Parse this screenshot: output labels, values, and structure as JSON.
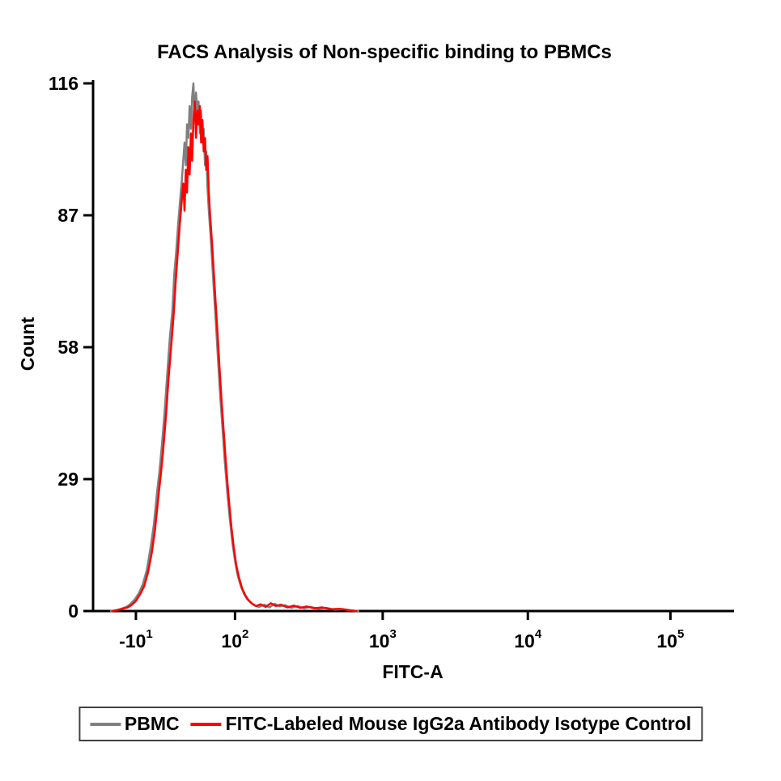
{
  "chart_data": {
    "type": "line",
    "subtype": "flow-cytometry-histogram",
    "title": "FACS Analysis of Non-specific binding to PBMCs",
    "xlabel": "FITC-A",
    "ylabel": "Count",
    "x_scale": "biexponential-log",
    "grid": false,
    "legend_position": "bottom",
    "axis_color": "#000000",
    "ylim": [
      0,
      116
    ],
    "y_ticks": [
      0,
      29,
      58,
      87,
      116
    ],
    "x_ticks": [
      {
        "label": "-10",
        "exponent": "1",
        "position": 0.067
      },
      {
        "label": "10",
        "exponent": "2",
        "position": 0.222
      },
      {
        "label": "10",
        "exponent": "3",
        "position": 0.453
      },
      {
        "label": "10",
        "exponent": "4",
        "position": 0.68
      },
      {
        "label": "10",
        "exponent": "5",
        "position": 0.903
      }
    ],
    "series": [
      {
        "name": "PBMC",
        "color": "#808080",
        "points": [
          [
            0.028,
            0
          ],
          [
            0.036,
            0.2
          ],
          [
            0.044,
            0.5
          ],
          [
            0.052,
            0.9
          ],
          [
            0.058,
            1.5
          ],
          [
            0.065,
            2.5
          ],
          [
            0.072,
            4
          ],
          [
            0.078,
            6
          ],
          [
            0.084,
            9
          ],
          [
            0.09,
            14
          ],
          [
            0.095,
            19
          ],
          [
            0.1,
            26
          ],
          [
            0.104,
            31
          ],
          [
            0.108,
            37
          ],
          [
            0.112,
            44
          ],
          [
            0.116,
            52
          ],
          [
            0.12,
            60
          ],
          [
            0.124,
            66
          ],
          [
            0.127,
            74
          ],
          [
            0.13,
            79
          ],
          [
            0.133,
            85
          ],
          [
            0.136,
            90
          ],
          [
            0.139,
            95
          ],
          [
            0.141,
            99
          ],
          [
            0.143,
            103
          ],
          [
            0.145,
            98
          ],
          [
            0.147,
            107
          ],
          [
            0.149,
            104
          ],
          [
            0.151,
            111
          ],
          [
            0.153,
            106
          ],
          [
            0.155,
            113
          ],
          [
            0.157,
            116
          ],
          [
            0.159,
            108
          ],
          [
            0.161,
            114
          ],
          [
            0.163,
            110
          ],
          [
            0.165,
            112
          ],
          [
            0.167,
            105
          ],
          [
            0.169,
            110
          ],
          [
            0.171,
            103
          ],
          [
            0.173,
            106
          ],
          [
            0.175,
            98
          ],
          [
            0.177,
            101
          ],
          [
            0.179,
            93
          ],
          [
            0.181,
            88
          ],
          [
            0.184,
            82
          ],
          [
            0.187,
            75
          ],
          [
            0.19,
            68
          ],
          [
            0.193,
            61
          ],
          [
            0.196,
            54
          ],
          [
            0.199,
            47
          ],
          [
            0.202,
            41
          ],
          [
            0.206,
            33
          ],
          [
            0.21,
            26
          ],
          [
            0.214,
            20
          ],
          [
            0.218,
            15
          ],
          [
            0.222,
            11
          ],
          [
            0.226,
            8
          ],
          [
            0.231,
            5.5
          ],
          [
            0.236,
            3.8
          ],
          [
            0.241,
            2.6
          ],
          [
            0.247,
            1.8
          ],
          [
            0.253,
            1.2
          ],
          [
            0.26,
            0.9
          ],
          [
            0.268,
            1.4
          ],
          [
            0.276,
            0.8
          ],
          [
            0.284,
            1.6
          ],
          [
            0.292,
            1.0
          ],
          [
            0.3,
            1.3
          ],
          [
            0.31,
            0.7
          ],
          [
            0.32,
            1.1
          ],
          [
            0.33,
            0.6
          ],
          [
            0.34,
            0.9
          ],
          [
            0.352,
            0.5
          ],
          [
            0.365,
            0.7
          ],
          [
            0.378,
            0.3
          ],
          [
            0.392,
            0.4
          ],
          [
            0.405,
            0.1
          ],
          [
            0.415,
            0
          ]
        ]
      },
      {
        "name": "FITC-Labeled Mouse IgG2a Antibody Isotype Control",
        "color": "#ff0000",
        "points": [
          [
            0.03,
            0
          ],
          [
            0.038,
            0.2
          ],
          [
            0.046,
            0.5
          ],
          [
            0.054,
            0.8
          ],
          [
            0.06,
            1.3
          ],
          [
            0.067,
            2.2
          ],
          [
            0.074,
            3.8
          ],
          [
            0.08,
            5.5
          ],
          [
            0.086,
            8.5
          ],
          [
            0.092,
            13
          ],
          [
            0.097,
            18
          ],
          [
            0.102,
            25
          ],
          [
            0.106,
            30
          ],
          [
            0.11,
            36
          ],
          [
            0.114,
            43
          ],
          [
            0.118,
            51
          ],
          [
            0.122,
            58
          ],
          [
            0.126,
            65
          ],
          [
            0.129,
            72
          ],
          [
            0.132,
            78
          ],
          [
            0.135,
            84
          ],
          [
            0.138,
            89
          ],
          [
            0.141,
            94
          ],
          [
            0.143,
            88
          ],
          [
            0.145,
            97
          ],
          [
            0.147,
            92
          ],
          [
            0.149,
            102
          ],
          [
            0.151,
            96
          ],
          [
            0.153,
            105
          ],
          [
            0.155,
            99
          ],
          [
            0.157,
            108
          ],
          [
            0.159,
            112
          ],
          [
            0.161,
            104
          ],
          [
            0.163,
            110
          ],
          [
            0.165,
            107
          ],
          [
            0.167,
            111
          ],
          [
            0.169,
            103
          ],
          [
            0.171,
            108
          ],
          [
            0.173,
            101
          ],
          [
            0.175,
            104
          ],
          [
            0.177,
            97
          ],
          [
            0.179,
            100
          ],
          [
            0.181,
            92
          ],
          [
            0.183,
            87
          ],
          [
            0.186,
            81
          ],
          [
            0.189,
            74
          ],
          [
            0.192,
            67
          ],
          [
            0.195,
            60
          ],
          [
            0.198,
            53
          ],
          [
            0.201,
            46
          ],
          [
            0.204,
            40
          ],
          [
            0.208,
            32
          ],
          [
            0.212,
            25
          ],
          [
            0.216,
            19
          ],
          [
            0.22,
            14
          ],
          [
            0.224,
            10
          ],
          [
            0.228,
            7.5
          ],
          [
            0.233,
            5
          ],
          [
            0.238,
            3.5
          ],
          [
            0.243,
            2.4
          ],
          [
            0.249,
            1.6
          ],
          [
            0.255,
            1.1
          ],
          [
            0.262,
            1.5
          ],
          [
            0.27,
            0.9
          ],
          [
            0.278,
            1.7
          ],
          [
            0.286,
            1.1
          ],
          [
            0.294,
            1.4
          ],
          [
            0.304,
            0.8
          ],
          [
            0.314,
            1.2
          ],
          [
            0.324,
            0.7
          ],
          [
            0.334,
            1.0
          ],
          [
            0.346,
            0.6
          ],
          [
            0.358,
            0.8
          ],
          [
            0.372,
            0.4
          ],
          [
            0.386,
            0.5
          ],
          [
            0.4,
            0.2
          ],
          [
            0.412,
            0
          ]
        ]
      }
    ]
  }
}
